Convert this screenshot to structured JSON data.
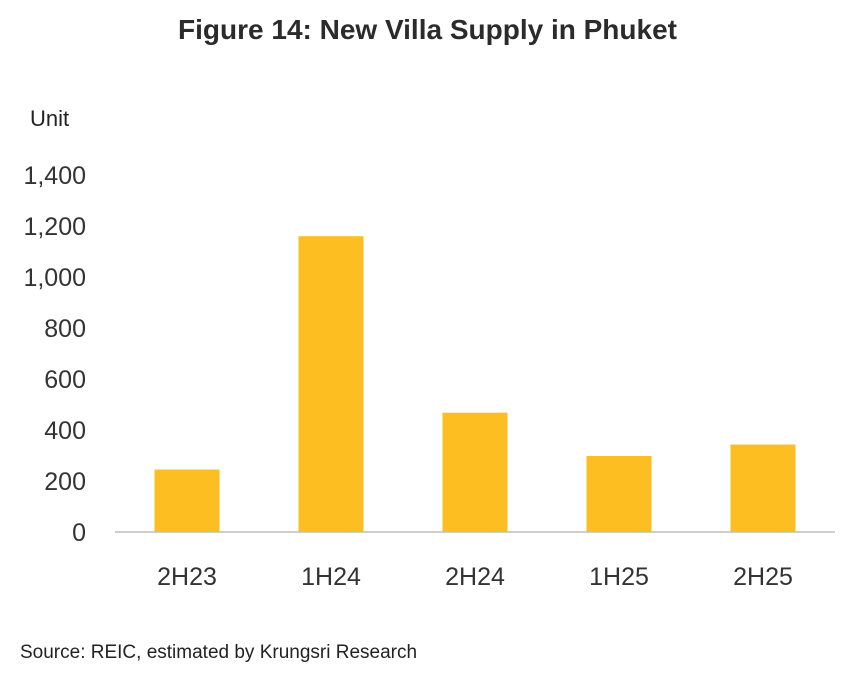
{
  "chart_data": {
    "type": "bar",
    "title": "Figure 14: New Villa Supply in Phuket",
    "ylabel": "Unit",
    "xlabel": "",
    "categories": [
      "2H23",
      "1H24",
      "2H24",
      "1H25",
      "2H25"
    ],
    "values": [
      245,
      1160,
      468,
      298,
      343
    ],
    "ylim": [
      0,
      1400
    ],
    "yticks": [
      "0",
      "200",
      "400",
      "600",
      "800",
      "1,000",
      "1,200",
      "1,400"
    ],
    "ytick_values": [
      0,
      200,
      400,
      600,
      800,
      1000,
      1200,
      1400
    ],
    "bar_color": "#FDBE21",
    "grid": false,
    "legend": "none"
  },
  "source": "Source: REIC, estimated by Krungsri Research"
}
